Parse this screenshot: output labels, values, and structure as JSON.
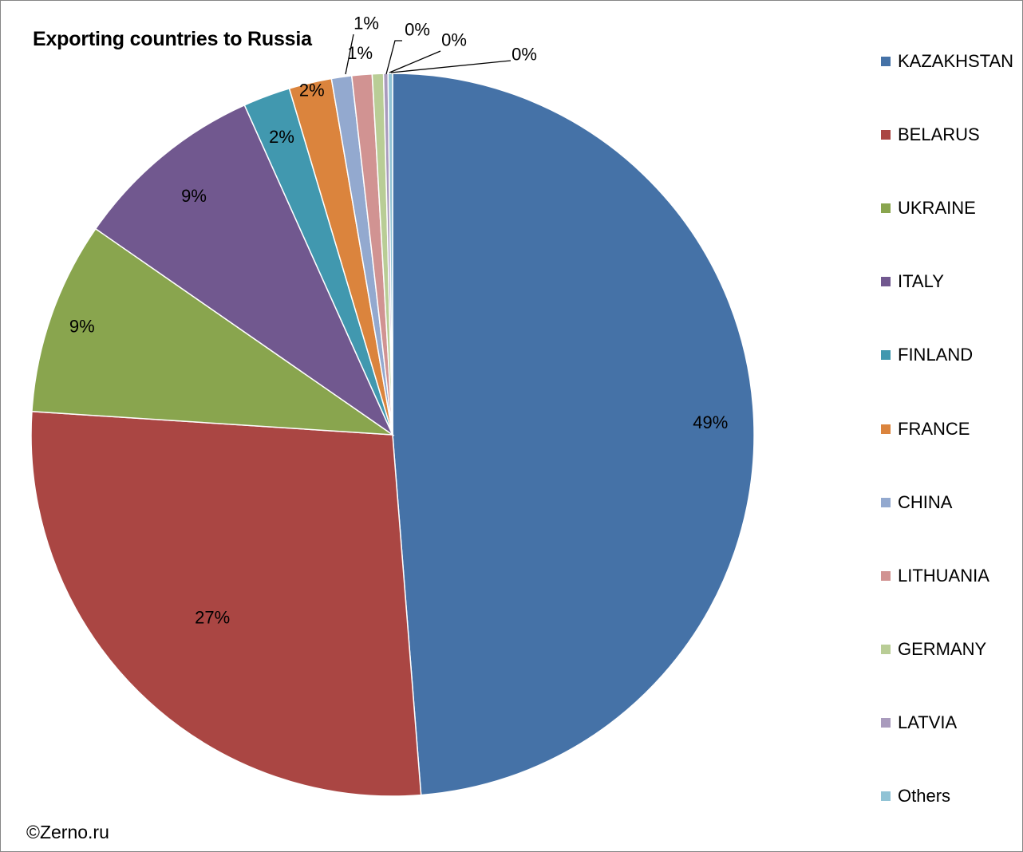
{
  "chart_data": {
    "type": "pie",
    "title": "Exporting countries to Russia",
    "legend_position": "right",
    "slices": [
      {
        "label": "KAZAKHSTAN",
        "value": 48.6,
        "data_label": "49%",
        "color": "#4572A7"
      },
      {
        "label": "BELARUS",
        "value": 27.2,
        "data_label": "27%",
        "color": "#AA4643"
      },
      {
        "label": "UKRAINE",
        "value": 8.6,
        "data_label": "9%",
        "color": "#89A54E"
      },
      {
        "label": "ITALY",
        "value": 8.6,
        "data_label": "9%",
        "color": "#71588F"
      },
      {
        "label": "FINLAND",
        "value": 2.1,
        "data_label": "2%",
        "color": "#4198AF"
      },
      {
        "label": "FRANCE",
        "value": 1.9,
        "data_label": "2%",
        "color": "#DB843D"
      },
      {
        "label": "CHINA",
        "value": 0.9,
        "data_label": "1%",
        "color": "#93A9CF"
      },
      {
        "label": "LITHUANIA",
        "value": 0.9,
        "data_label": "1%",
        "color": "#D19392"
      },
      {
        "label": "GERMANY",
        "value": 0.5,
        "data_label": "0%",
        "color": "#B9CD96"
      },
      {
        "label": "LATVIA",
        "value": 0.2,
        "data_label": "0%",
        "color": "#A99BBD"
      },
      {
        "label": "Others",
        "value": 0.2,
        "data_label": "0%",
        "color": "#91C3D5"
      }
    ]
  },
  "footer": {
    "copyright": "©Zerno.ru"
  }
}
